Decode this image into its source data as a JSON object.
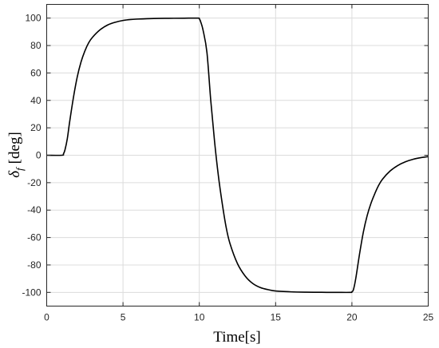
{
  "chart_data": {
    "type": "line",
    "xlabel": "Time[s]",
    "ylabel_symbol": "δ",
    "ylabel_subscript": "f",
    "ylabel_unit": "[deg]",
    "xlim": [
      0,
      25
    ],
    "ylim": [
      -110,
      110
    ],
    "xticks": [
      0,
      5,
      10,
      15,
      20,
      25
    ],
    "yticks": [
      -100,
      -80,
      -60,
      -40,
      -20,
      0,
      20,
      40,
      60,
      80,
      100
    ],
    "grid": true,
    "line_color": "#000000",
    "series": [
      {
        "x": [
          0,
          1.0,
          1.1,
          1.2,
          1.35,
          1.5,
          1.75,
          2.0,
          2.25,
          2.5,
          2.75,
          3.0,
          3.5,
          4.0,
          4.5,
          5.0,
          5.5,
          6.0,
          7.0,
          8.0,
          9.0,
          9.9,
          10.0,
          10.1,
          10.25,
          10.5,
          10.75,
          11.0,
          11.25,
          11.5,
          11.75,
          12.0,
          12.5,
          13.0,
          13.5,
          14.0,
          14.5,
          15.0,
          16.0,
          17.0,
          18.0,
          19.0,
          19.9,
          20.0,
          20.1,
          20.25,
          20.5,
          20.75,
          21.0,
          21.25,
          21.5,
          21.75,
          22.0,
          22.5,
          23.0,
          23.5,
          24.0,
          24.5,
          25.0
        ],
        "y": [
          0,
          0,
          1,
          4,
          12,
          24,
          42,
          57,
          68,
          76,
          82,
          86,
          91.5,
          95,
          97,
          98.3,
          99,
          99.3,
          99.7,
          99.85,
          99.95,
          100,
          99.5,
          97,
          91,
          75,
          40,
          10,
          -15,
          -35,
          -52,
          -64,
          -79,
          -88,
          -93.5,
          -96.5,
          -98,
          -99,
          -99.6,
          -99.85,
          -99.95,
          -100,
          -100,
          -99.5,
          -98,
          -90,
          -72,
          -56,
          -44,
          -35,
          -28,
          -22,
          -17.5,
          -11.5,
          -7.5,
          -4.8,
          -3,
          -1.8,
          -1
        ]
      }
    ]
  }
}
